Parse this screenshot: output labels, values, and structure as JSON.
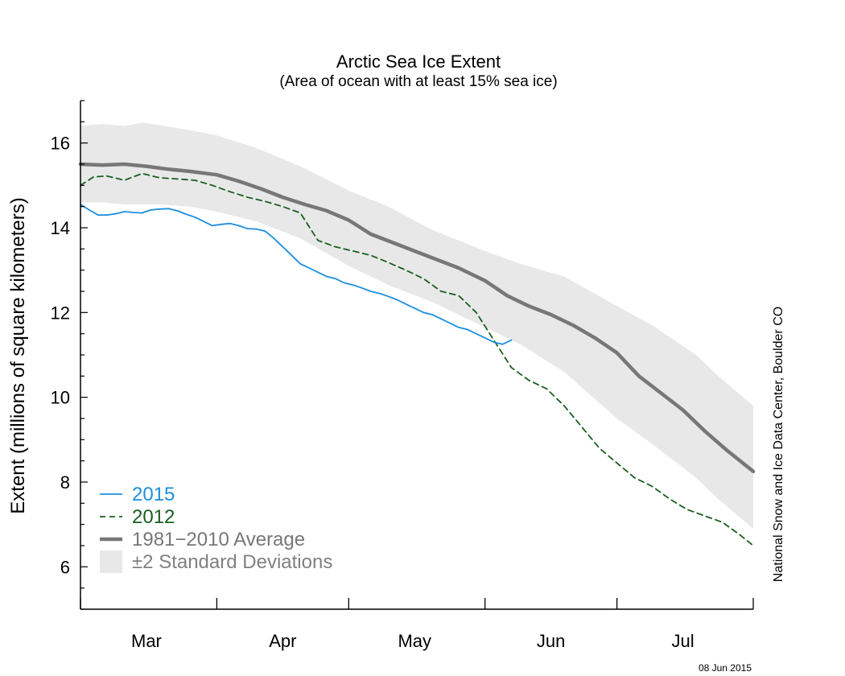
{
  "chart_data": {
    "type": "line",
    "title": "Arctic Sea Ice Extent",
    "subtitle": "(Area of ocean with at least 15% sea ice)",
    "ylabel": "Extent (millions of square kilometers)",
    "xlabel": "",
    "ylim": [
      5,
      17
    ],
    "yticks": [
      6,
      8,
      10,
      12,
      14,
      16
    ],
    "x_range_days": [
      0,
      153
    ],
    "month_ticks_days": [
      0,
      31,
      61,
      92,
      122,
      153
    ],
    "month_labels": [
      {
        "label": "Mar",
        "day": 15
      },
      {
        "label": "Apr",
        "day": 46
      },
      {
        "label": "May",
        "day": 76
      },
      {
        "label": "Jun",
        "day": 107
      },
      {
        "label": "Jul",
        "day": 137
      }
    ],
    "grid": false,
    "legend_position": "bottom-left",
    "credit": "National Snow and Ice Data Center, Boulder CO",
    "date_stamp": "08 Jun 2015",
    "band": {
      "name": "±2 Standard Deviations",
      "color": "#e8e8e8",
      "x": [
        0,
        5,
        10,
        14,
        18,
        25,
        31,
        40,
        50,
        61,
        70,
        80,
        92,
        100,
        110,
        122,
        130,
        140,
        145,
        153
      ],
      "upper": [
        16.4,
        16.45,
        16.4,
        16.48,
        16.42,
        16.3,
        16.18,
        15.88,
        15.45,
        14.88,
        14.5,
        13.95,
        13.45,
        13.15,
        12.85,
        12.15,
        11.7,
        11.0,
        10.5,
        9.8
      ],
      "lower": [
        14.6,
        14.6,
        14.55,
        14.55,
        14.55,
        14.5,
        14.38,
        14.15,
        13.75,
        13.1,
        12.65,
        12.25,
        11.65,
        11.25,
        10.6,
        9.5,
        8.9,
        8.1,
        7.6,
        6.9
      ]
    },
    "series": [
      {
        "name": "2015",
        "color": "#1c8fe0",
        "width": 1.8,
        "dash": "",
        "x": [
          0,
          2,
          4,
          6,
          8,
          10,
          12,
          14,
          16,
          18,
          20,
          22,
          24,
          26,
          28,
          30,
          32,
          34,
          36,
          38,
          40,
          42,
          44,
          46,
          48,
          50,
          52,
          54,
          56,
          58,
          60,
          62,
          64,
          66,
          68,
          70,
          72,
          74,
          76,
          78,
          80,
          82,
          84,
          86,
          88,
          90,
          92,
          94,
          96,
          98
        ],
        "values": [
          14.55,
          14.42,
          14.3,
          14.3,
          14.33,
          14.38,
          14.36,
          14.35,
          14.42,
          14.44,
          14.45,
          14.4,
          14.32,
          14.25,
          14.15,
          14.05,
          14.08,
          14.1,
          14.05,
          13.98,
          13.97,
          13.92,
          13.75,
          13.55,
          13.35,
          13.15,
          13.05,
          12.95,
          12.85,
          12.8,
          12.7,
          12.65,
          12.58,
          12.5,
          12.45,
          12.38,
          12.3,
          12.2,
          12.1,
          12.0,
          11.95,
          11.85,
          11.75,
          11.65,
          11.6,
          11.5,
          11.4,
          11.3,
          11.25,
          11.35
        ]
      },
      {
        "name": "2012",
        "color": "#1a5e20",
        "width": 1.8,
        "dash": "7,5",
        "x": [
          0,
          3,
          6,
          10,
          14,
          18,
          22,
          26,
          30,
          34,
          38,
          42,
          46,
          50,
          54,
          58,
          62,
          66,
          70,
          74,
          78,
          82,
          86,
          90,
          94,
          98,
          102,
          106,
          110,
          114,
          118,
          122,
          126,
          130,
          134,
          138,
          142,
          146,
          150,
          153
        ],
        "values": [
          15.0,
          15.2,
          15.22,
          15.12,
          15.28,
          15.18,
          15.15,
          15.12,
          15.0,
          14.85,
          14.72,
          14.62,
          14.5,
          14.35,
          13.7,
          13.55,
          13.45,
          13.35,
          13.18,
          13.0,
          12.8,
          12.5,
          12.4,
          12.0,
          11.35,
          10.7,
          10.4,
          10.2,
          9.8,
          9.3,
          8.8,
          8.45,
          8.1,
          7.9,
          7.6,
          7.35,
          7.2,
          7.05,
          6.75,
          6.5
        ]
      },
      {
        "name": "1981−2010 Average",
        "color": "#777777",
        "width": 4.5,
        "dash": "",
        "x": [
          0,
          5,
          10,
          15,
          20,
          25,
          31,
          36,
          41,
          46,
          51,
          56,
          61,
          66,
          71,
          76,
          81,
          86,
          92,
          97,
          102,
          107,
          112,
          117,
          122,
          127,
          132,
          137,
          142,
          147,
          153
        ],
        "values": [
          15.5,
          15.48,
          15.5,
          15.45,
          15.38,
          15.33,
          15.25,
          15.1,
          14.92,
          14.72,
          14.55,
          14.4,
          14.18,
          13.85,
          13.65,
          13.45,
          13.25,
          13.05,
          12.75,
          12.4,
          12.15,
          11.95,
          11.7,
          11.4,
          11.05,
          10.5,
          10.1,
          9.7,
          9.2,
          8.75,
          8.25
        ]
      }
    ]
  }
}
